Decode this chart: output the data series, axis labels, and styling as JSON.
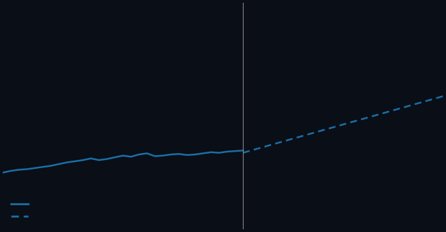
{
  "background_color": "#0a0e17",
  "line_color": "#1a6fa5",
  "vline_color": "#888888",
  "historical_years": [
    1990,
    1991,
    1992,
    1993,
    1994,
    1995,
    1996,
    1997,
    1998,
    1999,
    2000,
    2001,
    2002,
    2003,
    2004,
    2005,
    2006,
    2007,
    2008,
    2009,
    2010,
    2011,
    2012,
    2013,
    2014,
    2015,
    2016,
    2017,
    2018,
    2019,
    2020
  ],
  "historical_values": [
    10.0,
    10.3,
    10.5,
    10.6,
    10.8,
    11.0,
    11.2,
    11.5,
    11.8,
    12.0,
    12.2,
    12.5,
    12.2,
    12.4,
    12.7,
    13.0,
    12.8,
    13.2,
    13.4,
    12.9,
    13.0,
    13.2,
    13.3,
    13.1,
    13.2,
    13.4,
    13.6,
    13.5,
    13.7,
    13.8,
    13.9
  ],
  "forecast_years": [
    2020,
    2021,
    2022,
    2023,
    2024,
    2025,
    2026,
    2027,
    2028,
    2029,
    2030,
    2031,
    2032,
    2033,
    2034,
    2035,
    2036,
    2037,
    2038,
    2039,
    2040,
    2041,
    2042,
    2043,
    2044,
    2045
  ],
  "forecast_values": [
    13.5,
    13.9,
    14.3,
    14.7,
    15.1,
    15.5,
    15.9,
    16.3,
    16.7,
    17.1,
    17.5,
    17.9,
    18.3,
    18.7,
    19.1,
    19.5,
    19.9,
    20.3,
    20.7,
    21.1,
    21.5,
    21.9,
    22.3,
    22.7,
    23.1,
    23.5
  ],
  "vline_x": 2020,
  "ylim": [
    0,
    40
  ],
  "xlim": [
    1990,
    2045
  ],
  "legend_solid_label": "",
  "legend_dashed_label": "",
  "figsize": [
    6.5,
    3.38
  ],
  "dpi": 100
}
